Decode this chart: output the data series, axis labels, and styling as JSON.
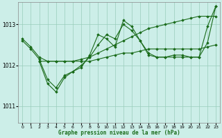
{
  "title": "Graphe pression niveau de la mer (hPa)",
  "bg_color": "#cceee8",
  "grid_color": "#99ccbb",
  "line_color": "#1a6b1a",
  "marker_color": "#1a6b1a",
  "ylim": [
    1010.6,
    1013.55
  ],
  "yticks": [
    1011,
    1012,
    1013
  ],
  "xlim": [
    -0.5,
    23.5
  ],
  "xticks": [
    0,
    1,
    2,
    3,
    4,
    5,
    6,
    7,
    8,
    9,
    10,
    11,
    12,
    13,
    14,
    15,
    16,
    17,
    18,
    19,
    20,
    21,
    22,
    23
  ],
  "series": [
    {
      "x": [
        0,
        1,
        2,
        3,
        4,
        5,
        6,
        7,
        8,
        9,
        10,
        11,
        12,
        13,
        14,
        15,
        16,
        17,
        18,
        19,
        20,
        21,
        22,
        23
      ],
      "y": [
        1012.65,
        1012.45,
        1012.2,
        1012.1,
        1012.1,
        1012.1,
        1012.1,
        1012.15,
        1012.2,
        1012.3,
        1012.4,
        1012.5,
        1012.6,
        1012.7,
        1012.8,
        1012.9,
        1012.95,
        1013.0,
        1013.05,
        1013.1,
        1013.15,
        1013.2,
        1013.2,
        1013.2
      ]
    },
    {
      "x": [
        0,
        1,
        2,
        3,
        4,
        5,
        6,
        7,
        8,
        9,
        10,
        11,
        12,
        13,
        14,
        15,
        16,
        17,
        18,
        19,
        20,
        21,
        22,
        23
      ],
      "y": [
        1012.6,
        1012.4,
        1012.15,
        1011.65,
        1011.45,
        1011.75,
        1011.85,
        1011.95,
        1012.25,
        1012.75,
        1012.65,
        1012.45,
        1013.1,
        1012.95,
        1012.6,
        1012.25,
        1012.2,
        1012.2,
        1012.2,
        1012.2,
        1012.2,
        1012.2,
        1012.55,
        1013.45
      ]
    },
    {
      "x": [
        2,
        3,
        4,
        5,
        6,
        7,
        8,
        9,
        10,
        11,
        12,
        13,
        14,
        15,
        16,
        17,
        18,
        19,
        20,
        21,
        22,
        23
      ],
      "y": [
        1012.1,
        1012.1,
        1012.1,
        1012.1,
        1012.1,
        1012.1,
        1012.1,
        1012.15,
        1012.2,
        1012.25,
        1012.3,
        1012.3,
        1012.35,
        1012.4,
        1012.4,
        1012.4,
        1012.4,
        1012.4,
        1012.4,
        1012.4,
        1012.45,
        1012.5
      ]
    },
    {
      "x": [
        2,
        3,
        4,
        5,
        6,
        7,
        8,
        9,
        10,
        11,
        12,
        13,
        14,
        15,
        16,
        17,
        18,
        19,
        20,
        21,
        22,
        23
      ],
      "y": [
        1012.1,
        1011.55,
        1011.35,
        1011.7,
        1011.85,
        1012.0,
        1012.2,
        1012.5,
        1012.75,
        1012.65,
        1013.0,
        1012.85,
        1012.6,
        1012.3,
        1012.2,
        1012.2,
        1012.25,
        1012.25,
        1012.2,
        1012.2,
        1012.95,
        1013.45
      ]
    }
  ]
}
